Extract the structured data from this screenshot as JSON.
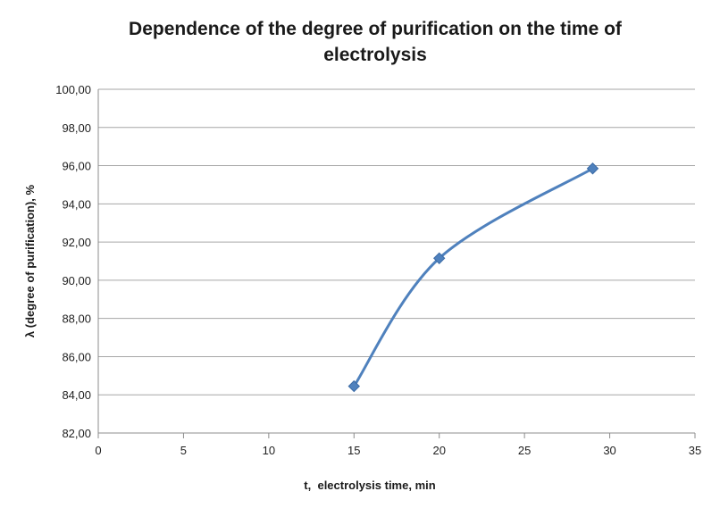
{
  "chart_data": {
    "type": "line",
    "title": "Dependence of the degree of purification on the time of electrolysis",
    "xlabel": "t,  electrolysis time, min",
    "ylabel": "λ (degree of purification), %",
    "xlim": [
      0,
      35
    ],
    "ylim": [
      82,
      100
    ],
    "xticks": [
      0,
      5,
      10,
      15,
      20,
      25,
      30,
      35
    ],
    "yticks": [
      "82,00",
      "84,00",
      "86,00",
      "88,00",
      "90,00",
      "92,00",
      "94,00",
      "96,00",
      "98,00",
      "100,00"
    ],
    "grid": "horizontal",
    "smooth": true,
    "marker": "diamond",
    "series": [
      {
        "color": "#4f81bd",
        "x": [
          15,
          20,
          29
        ],
        "y": [
          84.45,
          91.15,
          95.85
        ]
      }
    ]
  }
}
